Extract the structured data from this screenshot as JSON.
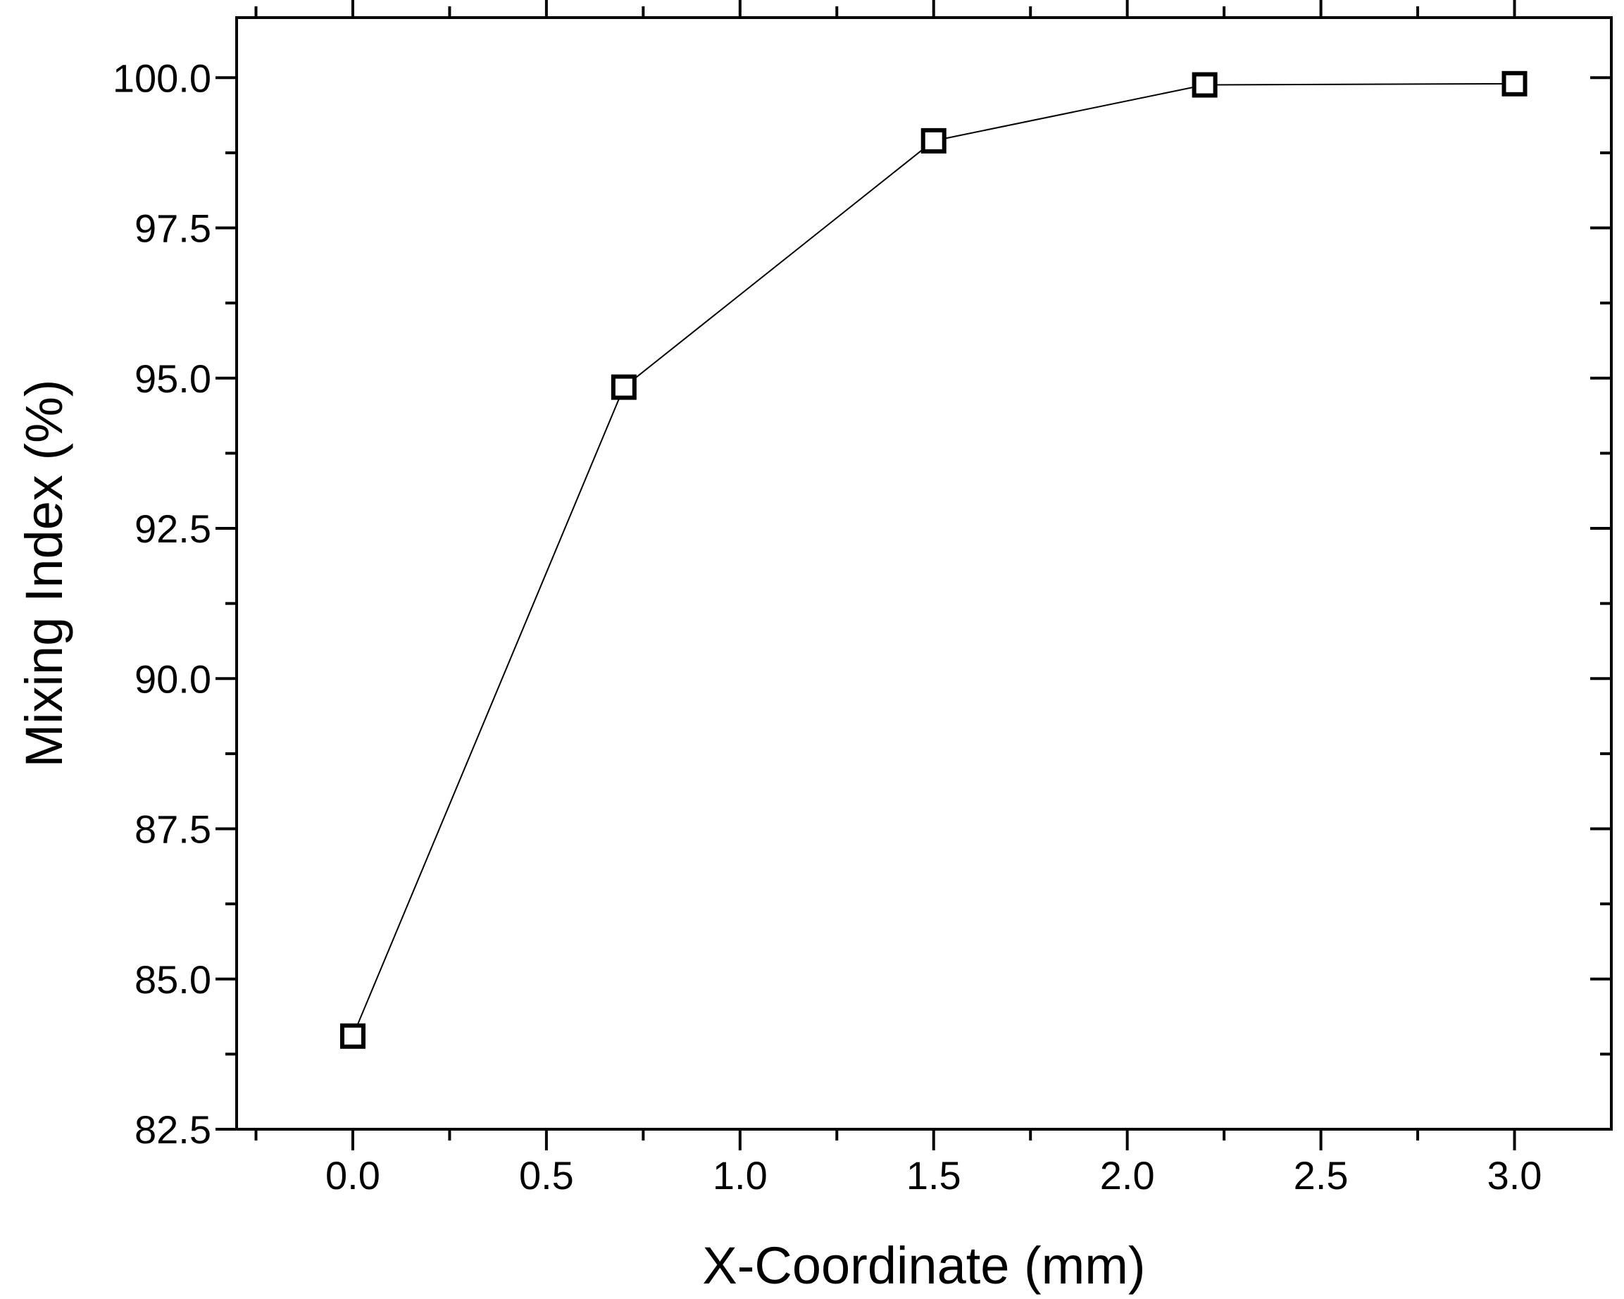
{
  "chart_data": {
    "type": "line",
    "title": "",
    "xlabel": "X-Coordinate (mm)",
    "ylabel": "Mixing Index (%)",
    "xlim": [
      -0.3,
      3.25
    ],
    "ylim": [
      82.5,
      101.0
    ],
    "x_ticks": [
      0.0,
      0.5,
      1.0,
      1.5,
      2.0,
      2.5,
      3.0
    ],
    "x_tick_labels": [
      "0.0",
      "0.5",
      "1.0",
      "1.5",
      "2.0",
      "2.5",
      "3.0"
    ],
    "y_ticks": [
      82.5,
      85.0,
      87.5,
      90.0,
      92.5,
      95.0,
      97.5,
      100.0
    ],
    "y_tick_labels": [
      "82.5",
      "85.0",
      "87.5",
      "90.0",
      "92.5",
      "95.0",
      "97.5",
      "100.0"
    ],
    "grid": false,
    "legend": "none",
    "series": [
      {
        "marker": "open-square",
        "color": "#000000",
        "x": [
          0.0,
          0.7,
          1.5,
          2.2,
          3.0
        ],
        "y": [
          84.05,
          94.85,
          98.95,
          99.88,
          99.9
        ]
      }
    ]
  }
}
